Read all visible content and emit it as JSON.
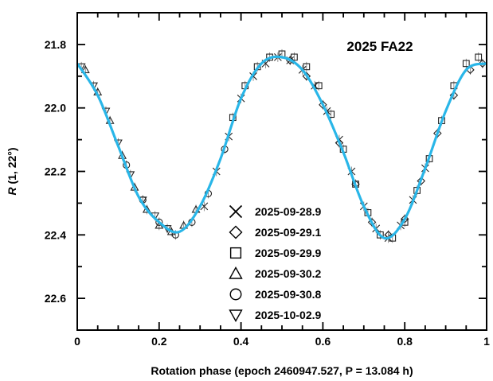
{
  "chart_data": {
    "type": "scatter",
    "title": "2025 FA22",
    "xlabel": "Rotation phase (epoch 2460947.527, P = 13.084 h)",
    "ylabel": "R (1, 22°)",
    "ylabel_main": "R",
    "ylabel_rest": " (1, 22°)",
    "xlim": [
      0,
      1
    ],
    "ylim": [
      22.7,
      21.7
    ],
    "y_inverted": true,
    "x_ticks": [
      "0",
      "0.2",
      "0.4",
      "0.6",
      "0.8",
      "1"
    ],
    "y_ticks": [
      "21.8",
      "22.0",
      "22.2",
      "22.4",
      "22.6"
    ],
    "legend_position": "center",
    "fit_color": "#29b6e8",
    "fit_curve": {
      "name": "",
      "x": [
        0.0,
        0.05,
        0.1,
        0.15,
        0.2,
        0.25,
        0.3,
        0.35,
        0.4,
        0.45,
        0.5,
        0.55,
        0.6,
        0.65,
        0.7,
        0.75,
        0.8,
        0.85,
        0.9,
        0.95,
        1.0
      ],
      "y": [
        21.86,
        21.96,
        22.12,
        22.28,
        22.36,
        22.39,
        22.31,
        22.16,
        21.97,
        21.86,
        21.84,
        21.88,
        21.99,
        22.14,
        22.31,
        22.41,
        22.35,
        22.19,
        22.01,
        21.88,
        21.86
      ]
    },
    "series": [
      {
        "name": "2025-09-28.9",
        "marker": "x",
        "x": [
          0.31,
          0.34,
          0.37,
          0.4,
          0.43,
          0.46,
          0.49,
          0.52,
          0.55,
          0.58,
          0.61,
          0.64,
          0.67,
          0.7,
          0.73,
          0.76,
          0.79,
          0.82,
          0.85
        ],
        "y": [
          22.31,
          22.2,
          22.09,
          21.97,
          21.9,
          21.86,
          21.84,
          21.85,
          21.88,
          21.93,
          22.01,
          22.1,
          22.2,
          22.31,
          22.38,
          22.41,
          22.37,
          22.29,
          22.19
        ]
      },
      {
        "name": "2025-09-29.1",
        "marker": "diamond",
        "x": [
          0.52,
          0.56,
          0.6,
          0.64,
          0.68,
          0.72,
          0.76,
          0.8,
          0.84,
          0.88,
          0.92,
          0.96,
          0.99
        ],
        "y": [
          21.85,
          21.9,
          21.99,
          22.11,
          22.24,
          22.36,
          22.4,
          22.35,
          22.23,
          22.08,
          21.96,
          21.88,
          21.86
        ]
      },
      {
        "name": "2025-09-29.9",
        "marker": "square",
        "x": [
          0.38,
          0.41,
          0.44,
          0.47,
          0.5,
          0.53,
          0.56,
          0.59,
          0.62,
          0.65,
          0.68,
          0.71,
          0.74,
          0.77,
          0.8,
          0.83,
          0.86,
          0.89,
          0.92,
          0.95,
          0.98
        ],
        "y": [
          22.03,
          21.93,
          21.87,
          21.84,
          21.83,
          21.84,
          21.87,
          21.93,
          22.02,
          22.13,
          22.24,
          22.33,
          22.4,
          22.41,
          22.36,
          22.26,
          22.16,
          22.04,
          21.93,
          21.86,
          21.84
        ]
      },
      {
        "name": "2025-09-30.2",
        "marker": "triangle-up",
        "x": [
          0.02,
          0.05,
          0.08,
          0.11,
          0.14,
          0.17,
          0.2,
          0.23,
          0.26,
          0.29
        ],
        "y": [
          21.88,
          21.95,
          22.04,
          22.15,
          22.25,
          22.32,
          22.37,
          22.39,
          22.37,
          22.32
        ]
      },
      {
        "name": "2025-09-30.8",
        "marker": "circle",
        "x": [
          0.12,
          0.16,
          0.2,
          0.24,
          0.28,
          0.32,
          0.36
        ],
        "y": [
          22.18,
          22.29,
          22.36,
          22.4,
          22.36,
          22.27,
          22.13
        ]
      },
      {
        "name": "2025-10-02.9",
        "marker": "triangle-down",
        "x": [
          0.01,
          0.04,
          0.07,
          0.1,
          0.13,
          0.16,
          0.19,
          0.22
        ],
        "y": [
          21.87,
          21.93,
          22.01,
          22.11,
          22.21,
          22.29,
          22.34,
          22.38
        ]
      }
    ]
  }
}
